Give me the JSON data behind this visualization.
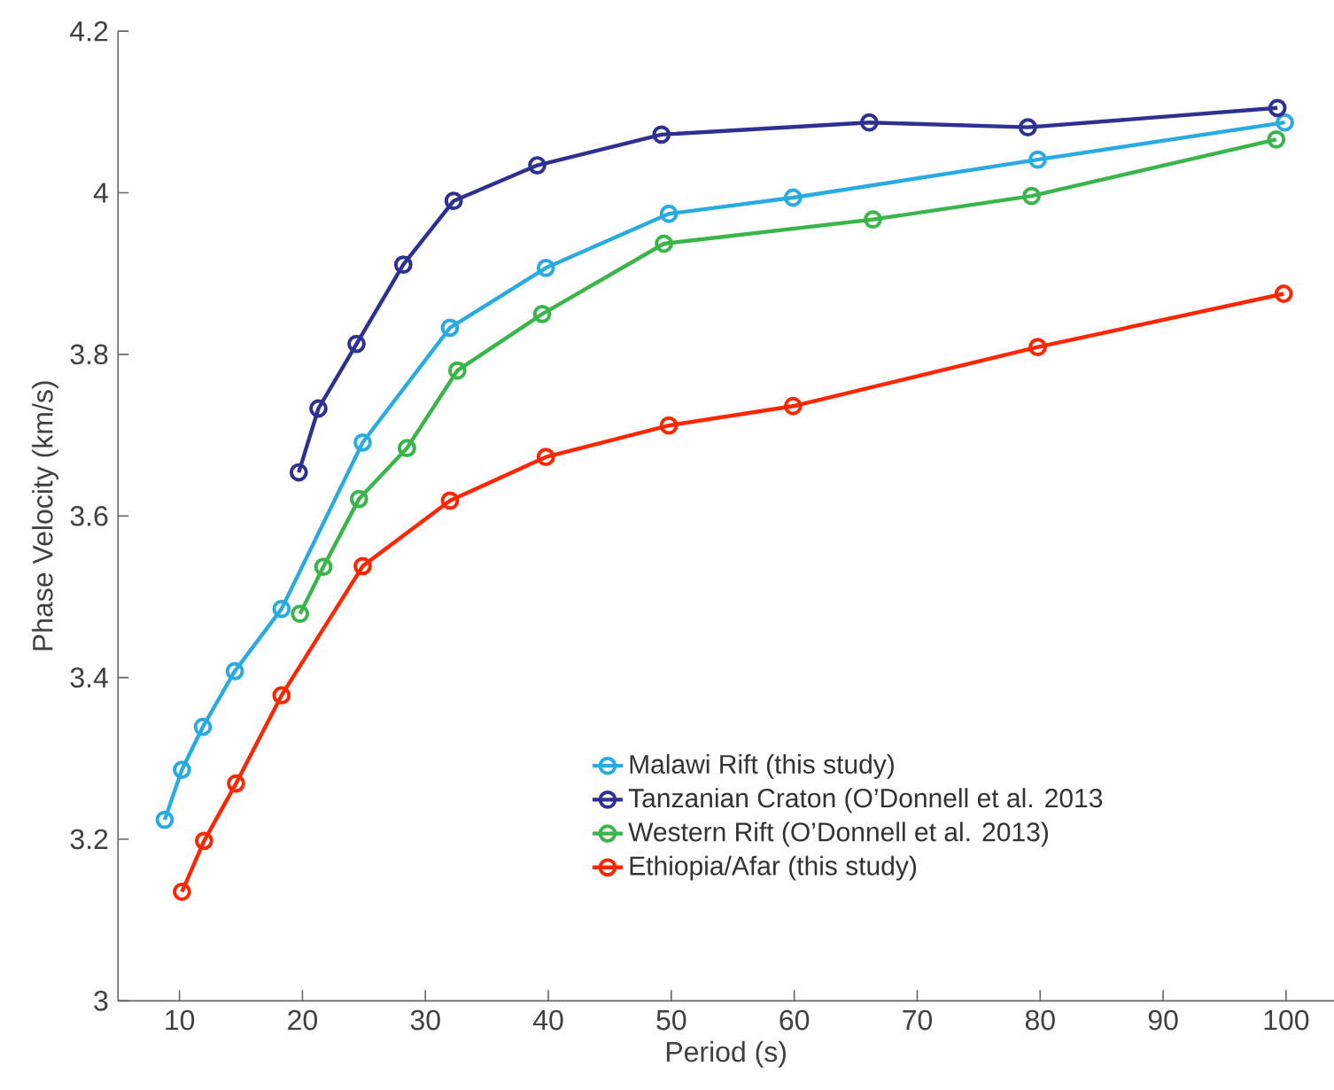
{
  "chart_data": {
    "type": "line",
    "xlabel": "Period (s)",
    "ylabel": "Phase Velocity (km/s)",
    "xlim": [
      5,
      103.9
    ],
    "ylim": [
      3,
      4.2
    ],
    "xticks": [
      10,
      20,
      30,
      40,
      50,
      60,
      70,
      80,
      90,
      100
    ],
    "yticks": [
      3,
      3.2,
      3.4,
      3.6,
      3.8,
      4,
      4.2
    ],
    "grid": false,
    "legend": "bottom right",
    "marker": "circle",
    "line_style": "solid",
    "series": [
      {
        "name": "Malawi Rift (this study)",
        "color": "#29abe2",
        "x": [
          8.8,
          10.2,
          11.9,
          14.5,
          18.3,
          24.9,
          32.0,
          39.8,
          49.8,
          59.9,
          79.8,
          99.9
        ],
        "values": [
          3.224,
          3.286,
          3.339,
          3.408,
          3.485,
          3.691,
          3.833,
          3.907,
          3.974,
          3.994,
          4.041,
          4.087
        ]
      },
      {
        "name": "Tanzanian Craton (O’Donnell et al. 2013",
        "color": "#2e3192",
        "x": [
          19.7,
          21.3,
          24.4,
          28.2,
          32.3,
          39.1,
          49.2,
          66.1,
          79.0,
          99.3
        ],
        "values": [
          3.654,
          3.733,
          3.813,
          3.911,
          3.99,
          4.034,
          4.072,
          4.087,
          4.081,
          4.105
        ]
      },
      {
        "name": "Western Rift (O’Donnell et al. 2013)",
        "color": "#39b54a",
        "x": [
          19.8,
          21.7,
          24.6,
          28.5,
          32.6,
          39.5,
          49.4,
          66.4,
          79.3,
          99.2
        ],
        "values": [
          3.479,
          3.537,
          3.621,
          3.684,
          3.78,
          3.85,
          3.937,
          3.967,
          3.996,
          4.066
        ]
      },
      {
        "name": "Ethiopia/Afar (this study)",
        "color": "#ff2600",
        "x": [
          10.2,
          12.0,
          14.6,
          18.3,
          24.9,
          32.0,
          39.8,
          49.8,
          59.9,
          79.8,
          99.8
        ],
        "values": [
          3.135,
          3.198,
          3.269,
          3.378,
          3.538,
          3.619,
          3.673,
          3.712,
          3.736,
          3.809,
          3.875
        ]
      }
    ]
  }
}
